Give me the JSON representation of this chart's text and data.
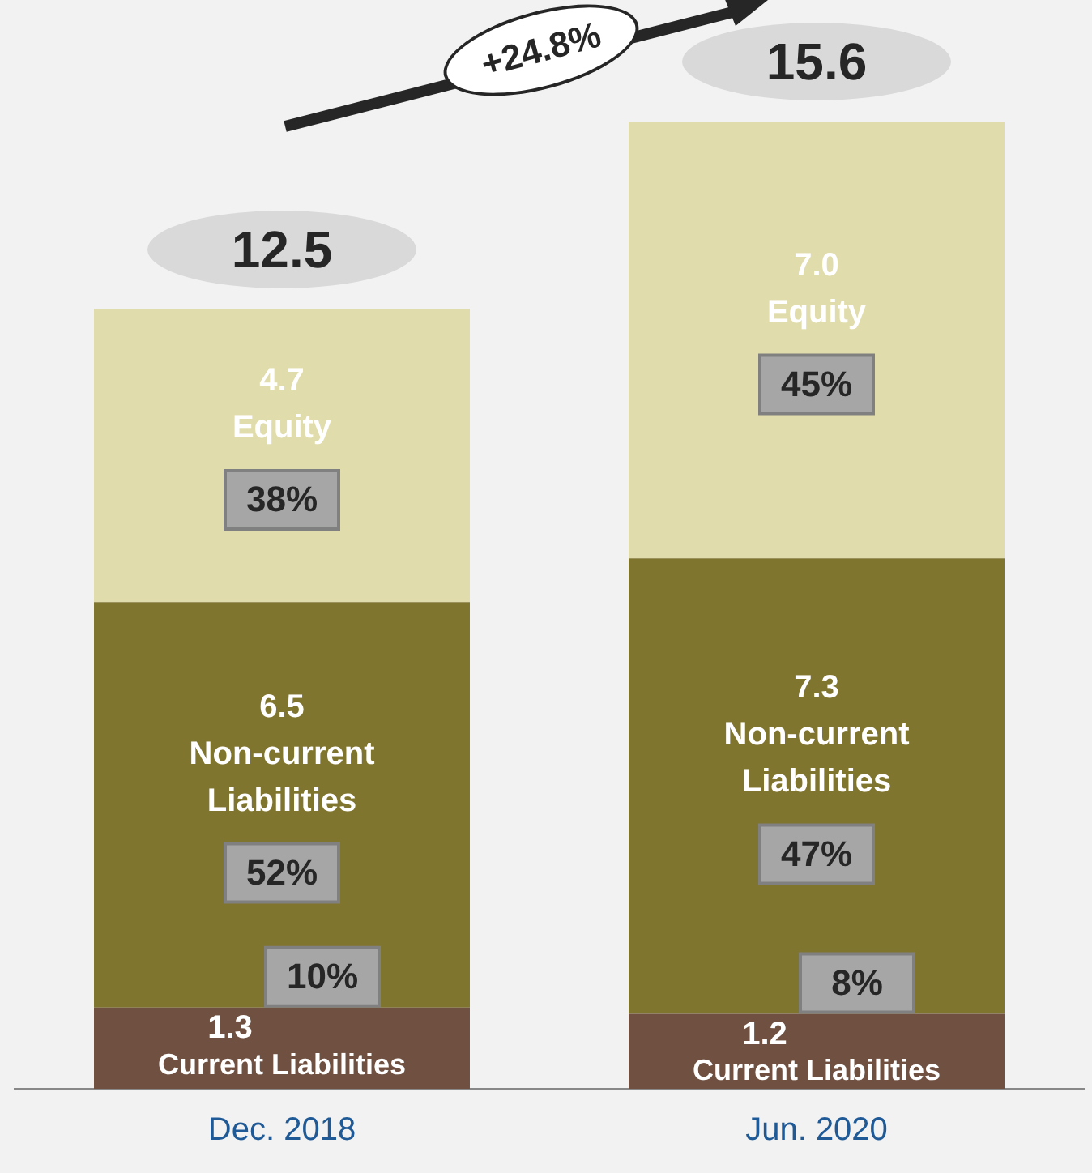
{
  "chart_data": {
    "type": "bar",
    "stacked": true,
    "categories": [
      "Dec. 2018",
      "Jun. 2020"
    ],
    "series": [
      {
        "name": "Current Liabilities",
        "color": "#6f5041",
        "values": [
          1.3,
          1.2
        ],
        "value_labels": [
          "1.3",
          "1.2"
        ]
      },
      {
        "name": "Non-current Liabilities",
        "color": "#80752f",
        "values": [
          6.5,
          7.3
        ],
        "value_labels": [
          "6.5",
          "7.3"
        ]
      },
      {
        "name": "Equity",
        "color": "#e1dcab",
        "values": [
          4.7,
          7.0
        ],
        "value_labels": [
          "4.7",
          "7.0"
        ]
      }
    ],
    "tick_labels": "x",
    "grid": false,
    "legend": false,
    "totals": [
      "12.5",
      "15.6"
    ],
    "annotations": [
      "10%",
      "8%",
      "52%",
      "47%",
      "38%",
      "45%",
      "+24.8%"
    ]
  }
}
